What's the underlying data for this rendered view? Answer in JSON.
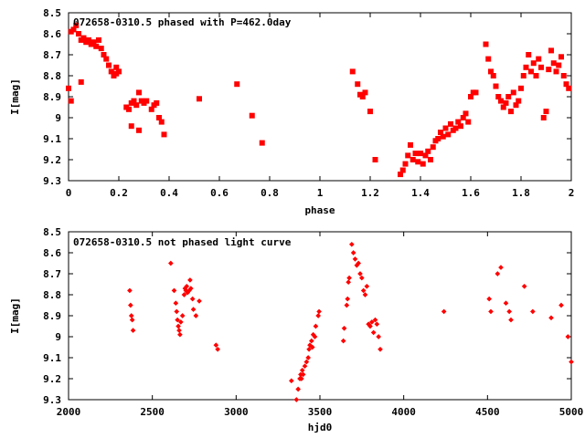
{
  "chart_data": [
    {
      "type": "scatter",
      "title": "072658-0310.5 phased with P=462.0day",
      "xlabel": "phase",
      "ylabel": "I[mag]",
      "xlim": [
        0,
        2
      ],
      "ylim": [
        8.5,
        9.3
      ],
      "y_inverted": true,
      "xticks": [
        0,
        0.2,
        0.4,
        0.6,
        0.8,
        1,
        1.2,
        1.4,
        1.6,
        1.8,
        2
      ],
      "xtick_labels": [
        "0",
        "0.2",
        "0.4",
        "0.6",
        "0.8",
        "1",
        "1.2",
        "1.4",
        "1.6",
        "1.8",
        "2"
      ],
      "yticks": [
        8.5,
        8.6,
        8.7,
        8.8,
        8.9,
        9.0,
        9.1,
        9.2,
        9.3
      ],
      "ytick_labels": [
        "8.5",
        "8.6",
        "8.7",
        "8.8",
        "8.9",
        "9",
        "9.1",
        "9.2",
        "9.3"
      ],
      "marker_color": "#ff0000",
      "points": [
        [
          0.0,
          8.86
        ],
        [
          0.01,
          8.92
        ],
        [
          0.01,
          8.59
        ],
        [
          0.02,
          8.58
        ],
        [
          0.03,
          8.56
        ],
        [
          0.04,
          8.6
        ],
        [
          0.05,
          8.63
        ],
        [
          0.05,
          8.83
        ],
        [
          0.06,
          8.62
        ],
        [
          0.07,
          8.64
        ],
        [
          0.08,
          8.63
        ],
        [
          0.09,
          8.65
        ],
        [
          0.1,
          8.64
        ],
        [
          0.11,
          8.66
        ],
        [
          0.12,
          8.63
        ],
        [
          0.13,
          8.67
        ],
        [
          0.14,
          8.7
        ],
        [
          0.15,
          8.72
        ],
        [
          0.16,
          8.75
        ],
        [
          0.17,
          8.78
        ],
        [
          0.18,
          8.8
        ],
        [
          0.19,
          8.76
        ],
        [
          0.19,
          8.79
        ],
        [
          0.2,
          8.78
        ],
        [
          0.23,
          8.95
        ],
        [
          0.24,
          8.96
        ],
        [
          0.25,
          8.93
        ],
        [
          0.25,
          9.04
        ],
        [
          0.26,
          8.92
        ],
        [
          0.27,
          8.94
        ],
        [
          0.28,
          9.06
        ],
        [
          0.28,
          8.88
        ],
        [
          0.29,
          8.92
        ],
        [
          0.3,
          8.93
        ],
        [
          0.31,
          8.92
        ],
        [
          0.33,
          8.96
        ],
        [
          0.34,
          8.94
        ],
        [
          0.35,
          8.93
        ],
        [
          0.36,
          9.0
        ],
        [
          0.37,
          9.02
        ],
        [
          0.38,
          9.08
        ],
        [
          0.52,
          8.91
        ],
        [
          0.67,
          8.84
        ],
        [
          0.73,
          8.99
        ],
        [
          0.77,
          9.12
        ],
        [
          1.13,
          8.78
        ],
        [
          1.15,
          8.84
        ],
        [
          1.16,
          8.89
        ],
        [
          1.17,
          8.9
        ],
        [
          1.18,
          8.88
        ],
        [
          1.2,
          8.97
        ],
        [
          1.22,
          9.2
        ],
        [
          1.32,
          9.27
        ],
        [
          1.33,
          9.25
        ],
        [
          1.34,
          9.22
        ],
        [
          1.35,
          9.18
        ],
        [
          1.36,
          9.13
        ],
        [
          1.37,
          9.2
        ],
        [
          1.38,
          9.17
        ],
        [
          1.39,
          9.21
        ],
        [
          1.4,
          9.17
        ],
        [
          1.41,
          9.22
        ],
        [
          1.42,
          9.18
        ],
        [
          1.43,
          9.16
        ],
        [
          1.44,
          9.2
        ],
        [
          1.45,
          9.14
        ],
        [
          1.46,
          9.11
        ],
        [
          1.47,
          9.1
        ],
        [
          1.48,
          9.07
        ],
        [
          1.49,
          9.09
        ],
        [
          1.5,
          9.05
        ],
        [
          1.51,
          9.08
        ],
        [
          1.52,
          9.03
        ],
        [
          1.53,
          9.06
        ],
        [
          1.54,
          9.05
        ],
        [
          1.55,
          9.02
        ],
        [
          1.56,
          9.04
        ],
        [
          1.57,
          9.0
        ],
        [
          1.58,
          8.98
        ],
        [
          1.59,
          9.02
        ],
        [
          1.6,
          8.9
        ],
        [
          1.61,
          8.88
        ],
        [
          1.62,
          8.88
        ],
        [
          1.66,
          8.65
        ],
        [
          1.67,
          8.72
        ],
        [
          1.68,
          8.78
        ],
        [
          1.69,
          8.8
        ],
        [
          1.7,
          8.85
        ],
        [
          1.71,
          8.9
        ],
        [
          1.72,
          8.92
        ],
        [
          1.73,
          8.95
        ],
        [
          1.74,
          8.93
        ],
        [
          1.75,
          8.9
        ],
        [
          1.76,
          8.97
        ],
        [
          1.77,
          8.88
        ],
        [
          1.78,
          8.94
        ],
        [
          1.79,
          8.92
        ],
        [
          1.8,
          8.86
        ],
        [
          1.81,
          8.8
        ],
        [
          1.82,
          8.76
        ],
        [
          1.83,
          8.7
        ],
        [
          1.84,
          8.78
        ],
        [
          1.85,
          8.74
        ],
        [
          1.86,
          8.8
        ],
        [
          1.87,
          8.72
        ],
        [
          1.88,
          8.76
        ],
        [
          1.89,
          9.0
        ],
        [
          1.9,
          8.97
        ],
        [
          1.91,
          8.77
        ],
        [
          1.92,
          8.68
        ],
        [
          1.93,
          8.74
        ],
        [
          1.94,
          8.78
        ],
        [
          1.95,
          8.75
        ],
        [
          1.96,
          8.71
        ],
        [
          1.97,
          8.8
        ],
        [
          1.98,
          8.84
        ],
        [
          1.99,
          8.86
        ]
      ]
    },
    {
      "type": "scatter",
      "title": "072658-0310.5 not phased light curve",
      "xlabel": "hjd0",
      "ylabel": "I[mag]",
      "xlim": [
        2000,
        5000
      ],
      "ylim": [
        8.5,
        9.3
      ],
      "y_inverted": true,
      "xticks": [
        2000,
        2500,
        3000,
        3500,
        4000,
        4500,
        5000
      ],
      "xtick_labels": [
        "2000",
        "2500",
        "3000",
        "3500",
        "4000",
        "4500",
        "5000"
      ],
      "yticks": [
        8.5,
        8.6,
        8.7,
        8.8,
        8.9,
        9.0,
        9.1,
        9.2,
        9.3
      ],
      "ytick_labels": [
        "8.5",
        "8.6",
        "8.7",
        "8.8",
        "8.9",
        "9",
        "9.1",
        "9.2",
        "9.3"
      ],
      "marker_color": "#ff0000",
      "points": [
        [
          2365,
          8.78
        ],
        [
          2370,
          8.85
        ],
        [
          2375,
          8.9
        ],
        [
          2380,
          8.92
        ],
        [
          2385,
          8.97
        ],
        [
          2610,
          8.65
        ],
        [
          2630,
          8.78
        ],
        [
          2640,
          8.84
        ],
        [
          2645,
          8.88
        ],
        [
          2650,
          8.92
        ],
        [
          2655,
          8.95
        ],
        [
          2660,
          8.97
        ],
        [
          2665,
          8.99
        ],
        [
          2670,
          8.93
        ],
        [
          2680,
          8.9
        ],
        [
          2690,
          8.8
        ],
        [
          2695,
          8.77
        ],
        [
          2700,
          8.78
        ],
        [
          2705,
          8.76
        ],
        [
          2710,
          8.79
        ],
        [
          2720,
          8.78
        ],
        [
          2725,
          8.73
        ],
        [
          2730,
          8.77
        ],
        [
          2740,
          8.82
        ],
        [
          2745,
          8.87
        ],
        [
          2760,
          8.9
        ],
        [
          2780,
          8.83
        ],
        [
          2880,
          9.04
        ],
        [
          2890,
          9.06
        ],
        [
          3330,
          9.21
        ],
        [
          3360,
          9.3
        ],
        [
          3370,
          9.25
        ],
        [
          3380,
          9.2
        ],
        [
          3385,
          9.18
        ],
        [
          3390,
          9.2
        ],
        [
          3395,
          9.16
        ],
        [
          3400,
          9.18
        ],
        [
          3410,
          9.14
        ],
        [
          3420,
          9.12
        ],
        [
          3430,
          9.1
        ],
        [
          3435,
          9.06
        ],
        [
          3440,
          9.04
        ],
        [
          3450,
          9.02
        ],
        [
          3455,
          9.05
        ],
        [
          3460,
          8.99
        ],
        [
          3470,
          9.0
        ],
        [
          3475,
          8.95
        ],
        [
          3490,
          8.9
        ],
        [
          3495,
          8.88
        ],
        [
          3640,
          9.02
        ],
        [
          3645,
          8.96
        ],
        [
          3660,
          8.85
        ],
        [
          3665,
          8.82
        ],
        [
          3670,
          8.74
        ],
        [
          3675,
          8.72
        ],
        [
          3690,
          8.56
        ],
        [
          3700,
          8.6
        ],
        [
          3710,
          8.63
        ],
        [
          3720,
          8.66
        ],
        [
          3730,
          8.65
        ],
        [
          3740,
          8.7
        ],
        [
          3750,
          8.72
        ],
        [
          3760,
          8.78
        ],
        [
          3770,
          8.8
        ],
        [
          3780,
          8.76
        ],
        [
          3790,
          8.94
        ],
        [
          3800,
          8.95
        ],
        [
          3810,
          8.93
        ],
        [
          3820,
          8.98
        ],
        [
          3830,
          8.92
        ],
        [
          3840,
          8.94
        ],
        [
          3850,
          9.0
        ],
        [
          3860,
          9.06
        ],
        [
          4240,
          8.88
        ],
        [
          4510,
          8.82
        ],
        [
          4520,
          8.88
        ],
        [
          4560,
          8.7
        ],
        [
          4580,
          8.67
        ],
        [
          4610,
          8.84
        ],
        [
          4630,
          8.88
        ],
        [
          4640,
          8.92
        ],
        [
          4720,
          8.76
        ],
        [
          4770,
          8.88
        ],
        [
          4880,
          8.91
        ],
        [
          4940,
          8.85
        ],
        [
          4980,
          9.0
        ],
        [
          5000,
          9.12
        ]
      ]
    }
  ]
}
